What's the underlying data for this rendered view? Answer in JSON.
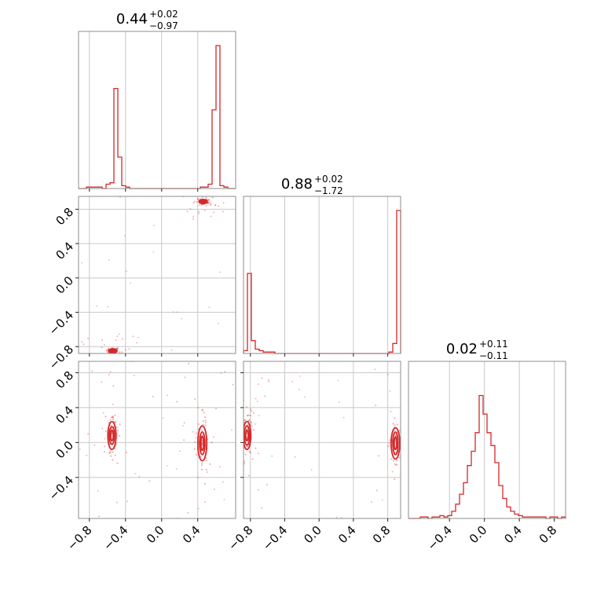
{
  "chart_data": {
    "type": "corner",
    "color": "#d62728",
    "parameters": [
      {
        "title_value": "0.44",
        "title_plus": "+0.02",
        "title_minus": "−0.97",
        "range": [
          -0.92,
          0.82
        ]
      },
      {
        "title_value": "0.88",
        "title_plus": "+0.02",
        "title_minus": "−1.72",
        "range": [
          -0.88,
          0.95
        ]
      },
      {
        "title_value": "0.02",
        "title_plus": "+0.11",
        "title_minus": "−0.11",
        "range": [
          -0.87,
          0.93
        ]
      }
    ],
    "x_ticks": [
      {
        "values": [
          -0.8,
          -0.4,
          0.0,
          0.4
        ],
        "labels": [
          "−0.8",
          "−0.4",
          "0.0",
          "0.4"
        ]
      },
      {
        "values": [
          -0.8,
          -0.4,
          0.0,
          0.4,
          0.8
        ],
        "labels": [
          "−0.8",
          "−0.4",
          "0.0",
          "0.4",
          "0.8"
        ]
      },
      {
        "values": [
          -0.4,
          0.0,
          0.4,
          0.8
        ],
        "labels": [
          "−0.4",
          "0.0",
          "0.4",
          "0.8"
        ]
      }
    ],
    "y_ticks": [
      null,
      {
        "values": [
          -0.8,
          -0.4,
          0.0,
          0.4,
          0.8
        ],
        "labels": [
          "−0.8",
          "−0.4",
          "0.0",
          "0.4",
          "0.8"
        ]
      },
      {
        "values": [
          -0.4,
          0.0,
          0.4,
          0.8
        ],
        "labels": [
          "−0.4",
          "0.0",
          "0.4",
          "0.8"
        ]
      }
    ],
    "histograms": [
      {
        "edges": [
          -0.92,
          0.82
        ],
        "bins": 40,
        "peak": 100,
        "counts": [
          0,
          0,
          1,
          1,
          1,
          1,
          0,
          3,
          4,
          70,
          22,
          2,
          1,
          0,
          0,
          0,
          0,
          0,
          0,
          0,
          0,
          0,
          0,
          0,
          0,
          0,
          0,
          0,
          0,
          0,
          0,
          1,
          1,
          3,
          55,
          100,
          2,
          1,
          0,
          0
        ]
      },
      {
        "edges": [
          -0.88,
          0.95
        ],
        "bins": 40,
        "peak": 100,
        "counts": [
          2,
          56,
          9,
          3,
          2,
          1,
          1,
          1,
          0,
          0,
          0,
          0,
          0,
          0,
          0,
          0,
          0,
          0,
          0,
          0,
          0,
          0,
          0,
          0,
          0,
          0,
          0,
          0,
          0,
          0,
          0,
          0,
          0,
          0,
          0,
          0,
          0,
          1,
          7,
          100
        ]
      },
      {
        "edges": [
          -0.87,
          0.93
        ],
        "bins": 40,
        "peak": 100,
        "counts": [
          0,
          0,
          0,
          1,
          1,
          0,
          1,
          1,
          2,
          1,
          2,
          5,
          10,
          17,
          25,
          37,
          47,
          60,
          86,
          73,
          60,
          51,
          39,
          23,
          14,
          8,
          5,
          3,
          2,
          1,
          1,
          1,
          1,
          1,
          1,
          0,
          1,
          1,
          0,
          1
        ]
      }
    ],
    "scatter": [
      {
        "pair": [
          0,
          1
        ],
        "clusters": [
          {
            "center": [
              -0.54,
              -0.85
            ],
            "contour_radii": [
              [
                0.015,
                0.008
              ],
              [
                0.03,
                0.015
              ],
              [
                0.045,
                0.025
              ]
            ]
          },
          {
            "center": [
              0.46,
              0.89
            ],
            "contour_radii": [
              [
                0.015,
                0.008
              ],
              [
                0.03,
                0.016
              ],
              [
                0.045,
                0.025
              ]
            ]
          }
        ]
      },
      {
        "pair": [
          0,
          2
        ],
        "clusters": [
          {
            "center": [
              -0.55,
              0.08
            ],
            "contour_radii": [
              [
                0.015,
                0.06
              ],
              [
                0.03,
                0.1
              ],
              [
                0.045,
                0.16
              ]
            ]
          },
          {
            "center": [
              0.45,
              -0.01
            ],
            "contour_radii": [
              [
                0.015,
                0.08
              ],
              [
                0.03,
                0.13
              ],
              [
                0.05,
                0.2
              ]
            ]
          }
        ]
      },
      {
        "pair": [
          1,
          2
        ],
        "clusters": [
          {
            "center": [
              -0.84,
              0.08
            ],
            "contour_radii": [
              [
                0.015,
                0.06
              ],
              [
                0.03,
                0.11
              ],
              [
                0.045,
                0.16
              ]
            ]
          },
          {
            "center": [
              0.89,
              -0.01
            ],
            "contour_radii": [
              [
                0.015,
                0.07
              ],
              [
                0.03,
                0.13
              ],
              [
                0.05,
                0.18
              ]
            ]
          }
        ]
      }
    ]
  }
}
